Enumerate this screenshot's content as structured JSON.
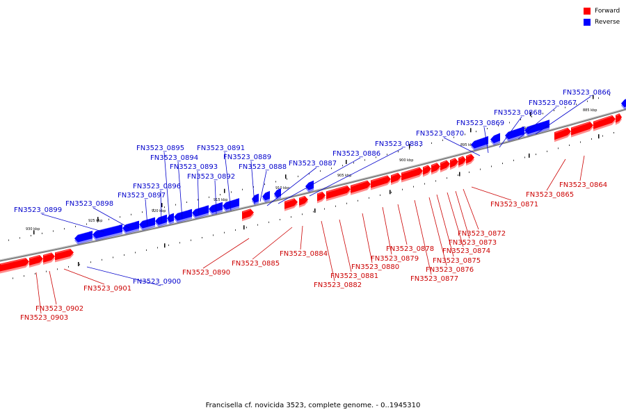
{
  "caption": "Francisella cf. novicida 3523, complete genome. - 0..1945310",
  "legend": [
    {
      "label": "Forward",
      "color": "#ff0000"
    },
    {
      "label": "Reverse",
      "color": "#0000ff"
    }
  ],
  "colors": {
    "forward": "#ff0000",
    "reverse": "#0000ff",
    "backbone": "#808080"
  },
  "scale_ticks": [
    "885 kbp",
    "890 kbp",
    "895 kbp",
    "900 kbp",
    "905 kbp",
    "910 kbp",
    "915 kbp",
    "920 kbp",
    "925 kbp",
    "930 kbp"
  ],
  "genes": [
    {
      "label": "FN3523_0866",
      "strand": "reverse"
    },
    {
      "label": "FN3523_0867",
      "strand": "reverse"
    },
    {
      "label": "FN3523_0868",
      "strand": "reverse"
    },
    {
      "label": "FN3523_0869",
      "strand": "reverse"
    },
    {
      "label": "FN3523_0870",
      "strand": "reverse"
    },
    {
      "label": "FN3523_0883",
      "strand": "reverse"
    },
    {
      "label": "FN3523_0886",
      "strand": "reverse"
    },
    {
      "label": "FN3523_0887",
      "strand": "reverse"
    },
    {
      "label": "FN3523_0888",
      "strand": "reverse"
    },
    {
      "label": "FN3523_0889",
      "strand": "reverse"
    },
    {
      "label": "FN3523_0891",
      "strand": "reverse"
    },
    {
      "label": "FN3523_0892",
      "strand": "reverse"
    },
    {
      "label": "FN3523_0893",
      "strand": "reverse"
    },
    {
      "label": "FN3523_0894",
      "strand": "reverse"
    },
    {
      "label": "FN3523_0895",
      "strand": "reverse"
    },
    {
      "label": "FN3523_0896",
      "strand": "reverse"
    },
    {
      "label": "FN3523_0897",
      "strand": "reverse"
    },
    {
      "label": "FN3523_0898",
      "strand": "reverse"
    },
    {
      "label": "FN3523_0899",
      "strand": "reverse"
    },
    {
      "label": "FN3523_0900",
      "strand": "reverse"
    },
    {
      "label": "FN3523_0864",
      "strand": "forward"
    },
    {
      "label": "FN3523_0865",
      "strand": "forward"
    },
    {
      "label": "FN3523_0871",
      "strand": "forward"
    },
    {
      "label": "FN3523_0872",
      "strand": "forward"
    },
    {
      "label": "FN3523_0873",
      "strand": "forward"
    },
    {
      "label": "FN3523_0874",
      "strand": "forward"
    },
    {
      "label": "FN3523_0875",
      "strand": "forward"
    },
    {
      "label": "FN3523_0876",
      "strand": "forward"
    },
    {
      "label": "FN3523_0877",
      "strand": "forward"
    },
    {
      "label": "FN3523_0878",
      "strand": "forward"
    },
    {
      "label": "FN3523_0879",
      "strand": "forward"
    },
    {
      "label": "FN3523_0880",
      "strand": "forward"
    },
    {
      "label": "FN3523_0881",
      "strand": "forward"
    },
    {
      "label": "FN3523_0882",
      "strand": "forward"
    },
    {
      "label": "FN3523_0884",
      "strand": "forward"
    },
    {
      "label": "FN3523_0885",
      "strand": "forward"
    },
    {
      "label": "FN3523_0890",
      "strand": "forward"
    },
    {
      "label": "FN3523_0901",
      "strand": "forward"
    },
    {
      "label": "FN3523_0902",
      "strand": "forward"
    },
    {
      "label": "FN3523_0903",
      "strand": "forward"
    }
  ]
}
